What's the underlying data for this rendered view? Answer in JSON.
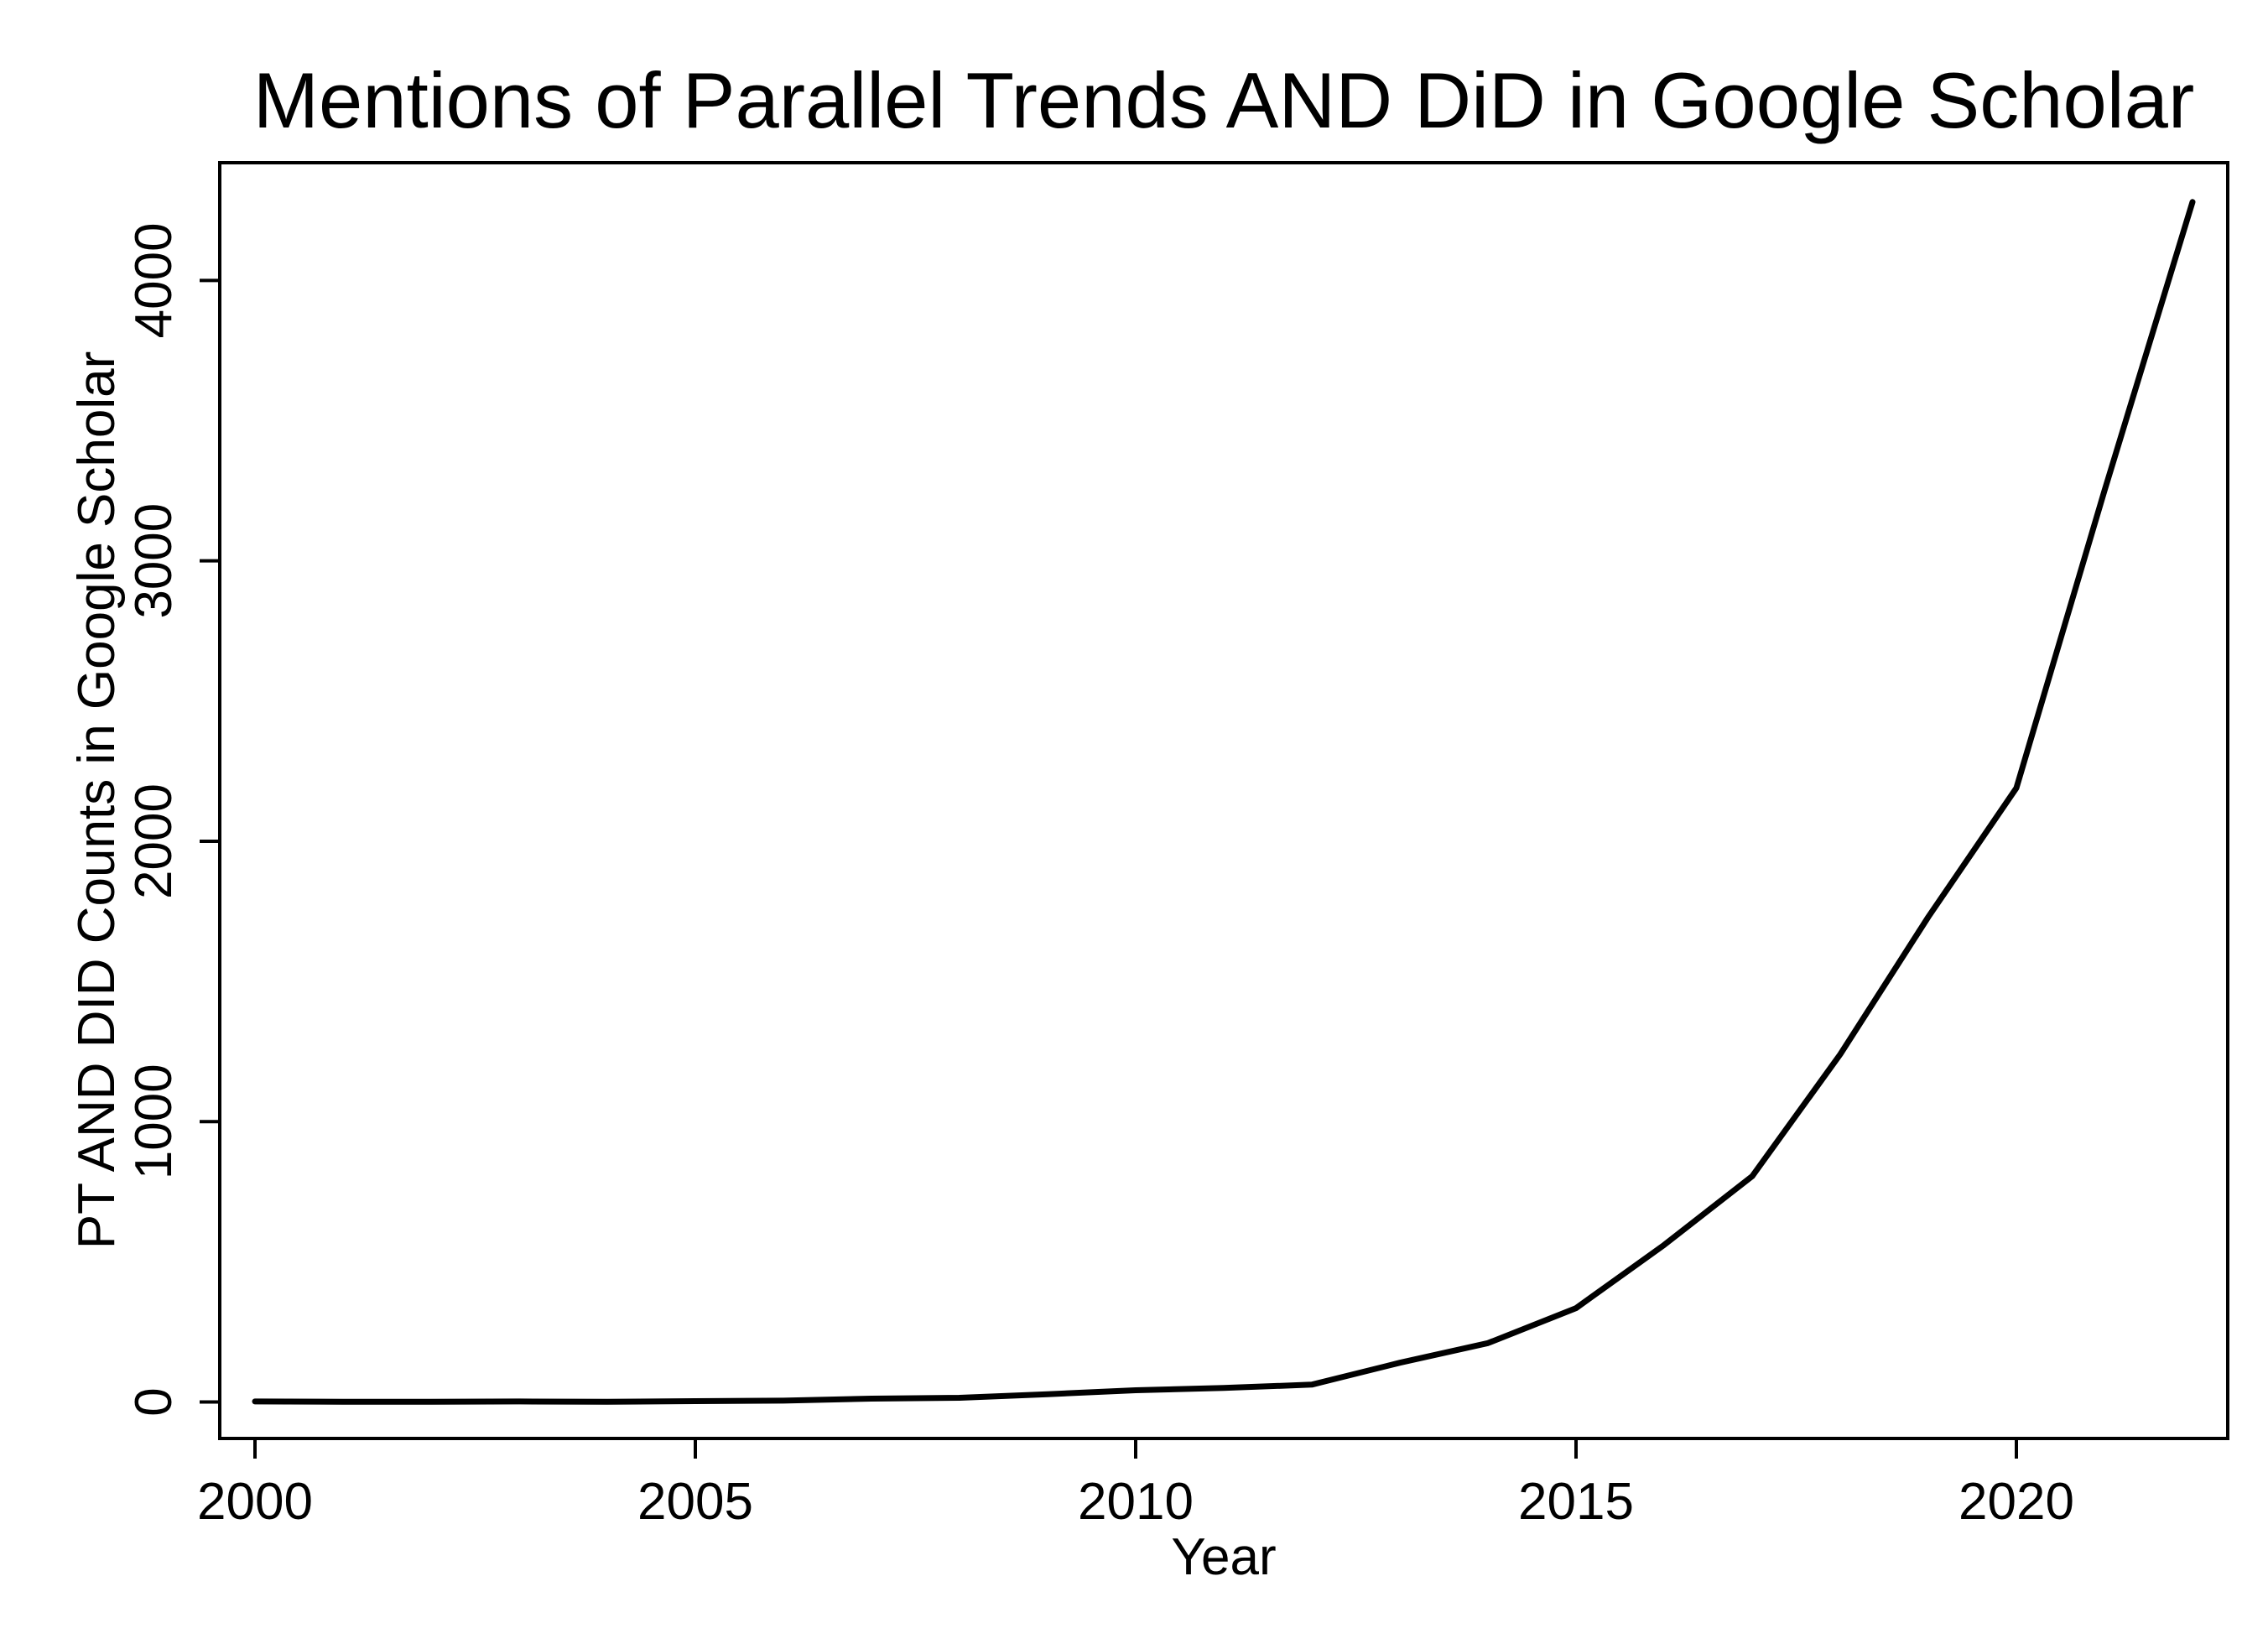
{
  "chart_data": {
    "type": "line",
    "title": "Mentions of Parallel Trends AND DiD in Google Scholar",
    "xlabel": "Year",
    "ylabel": "PT AND DID Counts in Google Scholar",
    "xlim": [
      1999.6,
      2022.4
    ],
    "ylim": [
      -130,
      4420
    ],
    "x_ticks": [
      2000,
      2005,
      2010,
      2015,
      2020
    ],
    "x_tick_labels": [
      "2000",
      "2005",
      "2010",
      "2015",
      "2020"
    ],
    "y_ticks": [
      0,
      1000,
      2000,
      3000,
      4000
    ],
    "y_tick_labels": [
      "0",
      "1000",
      "2000",
      "3000",
      "4000"
    ],
    "grid": false,
    "legend": "none",
    "line_color": "#000000",
    "series": [
      {
        "x": [
          2000,
          2001,
          2002,
          2003,
          2004,
          2005,
          2006,
          2007,
          2008,
          2009,
          2010,
          2011,
          2012,
          2013,
          2014,
          2015,
          2016,
          2017,
          2018,
          2019,
          2020,
          2021,
          2022
        ],
        "values": [
          2,
          1,
          1,
          2,
          1,
          3,
          5,
          12,
          15,
          28,
          42,
          50,
          62,
          140,
          210,
          335,
          560,
          805,
          1240,
          1730,
          2190,
          3250,
          4280
        ]
      }
    ]
  }
}
